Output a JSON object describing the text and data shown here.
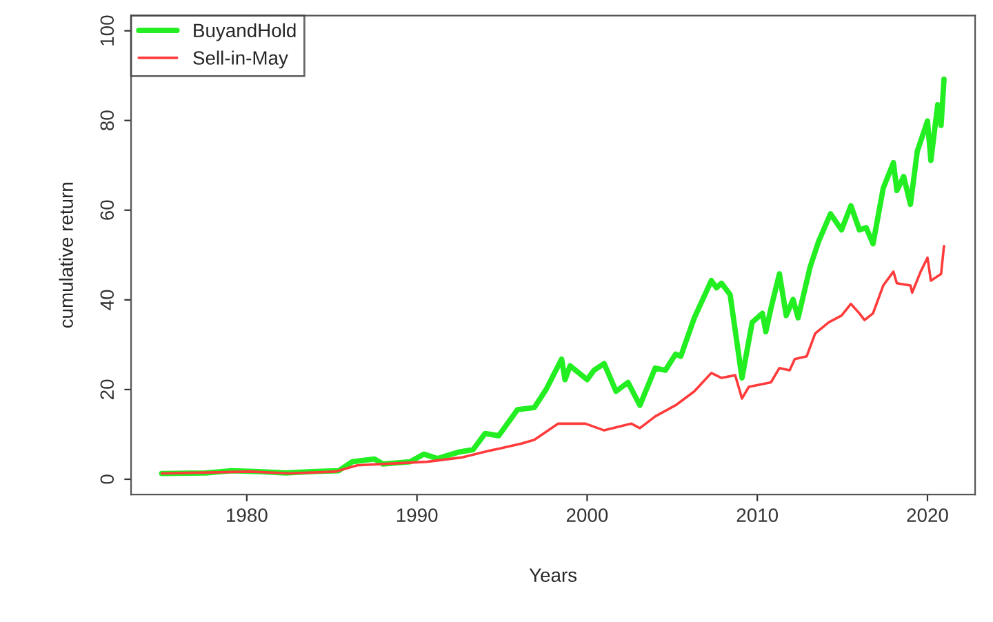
{
  "chart_data": {
    "type": "line",
    "xlabel": "Years",
    "ylabel": "cumulative return",
    "xlim": [
      1973.2,
      2022.8
    ],
    "ylim": [
      -3.4,
      103.4
    ],
    "xticks": [
      1980,
      1990,
      2000,
      2010,
      2020
    ],
    "yticks": [
      0,
      20,
      40,
      60,
      80,
      100
    ],
    "grid": false,
    "legend": "top left",
    "line_style": "solid",
    "marker": "none",
    "series": [
      {
        "name": "BuyandHold",
        "color": "#22ee22",
        "x": [
          1975.0,
          1977.6,
          1979.1,
          1980.7,
          1982.3,
          1983.8,
          1985.4,
          1986.2,
          1987.5,
          1988.0,
          1989.6,
          1990.4,
          1991.2,
          1992.5,
          1993.3,
          1994.0,
          1994.8,
          1995.9,
          1996.9,
          1997.6,
          1998.5,
          1998.7,
          1999.0,
          2000.0,
          2000.4,
          2001.0,
          2001.7,
          2002.4,
          2003.1,
          2004.0,
          2004.6,
          2005.2,
          2005.5,
          2006.3,
          2007.3,
          2007.6,
          2007.9,
          2008.4,
          2009.1,
          2009.7,
          2010.3,
          2010.5,
          2010.8,
          2011.3,
          2011.7,
          2012.1,
          2012.4,
          2013.1,
          2013.6,
          2014.3,
          2014.95,
          2015.5,
          2016.0,
          2016.4,
          2016.8,
          2017.4,
          2018.0,
          2018.2,
          2018.6,
          2019.0,
          2019.4,
          2020.0,
          2020.2,
          2020.6,
          2020.8,
          2020.97
        ],
        "values": [
          1.3,
          1.4,
          1.9,
          1.7,
          1.4,
          1.7,
          1.9,
          3.9,
          4.5,
          3.4,
          3.9,
          5.6,
          4.6,
          6.1,
          6.6,
          10.2,
          9.7,
          15.5,
          16.0,
          20.1,
          26.8,
          22.2,
          25.3,
          22.2,
          24.3,
          25.8,
          19.6,
          21.6,
          16.5,
          24.8,
          24.3,
          27.9,
          27.4,
          36.0,
          44.3,
          42.7,
          43.7,
          41.2,
          22.6,
          35.0,
          37.0,
          32.9,
          38.1,
          45.8,
          36.5,
          40.1,
          36.0,
          47.3,
          53.0,
          59.2,
          55.6,
          61.0,
          55.6,
          56.1,
          52.5,
          64.9,
          70.6,
          64.4,
          67.5,
          61.3,
          73.1,
          79.9,
          71.1,
          83.5,
          78.9,
          89.2
        ]
      },
      {
        "name": "Sell-in-May",
        "color": "#ff3b3b",
        "x": [
          1975.0,
          1980.2,
          1982.5,
          1985.2,
          1986.5,
          1988.0,
          1990.6,
          1992.7,
          1994.3,
          1994.8,
          1996.1,
          1996.9,
          1998.3,
          1999.9,
          2001.0,
          2002.6,
          2003.1,
          2004.0,
          2005.2,
          2006.3,
          2007.3,
          2007.9,
          2008.7,
          2009.1,
          2009.5,
          2010.8,
          2011.3,
          2011.9,
          2012.2,
          2012.9,
          2013.4,
          2014.2,
          2014.95,
          2015.5,
          2016.0,
          2016.3,
          2016.8,
          2017.4,
          2018.0,
          2018.2,
          2019.0,
          2019.1,
          2019.6,
          2020.0,
          2020.2,
          2020.8,
          2020.97
        ],
        "values": [
          1.3,
          1.7,
          1.3,
          1.7,
          3.1,
          3.4,
          3.9,
          4.9,
          6.4,
          6.8,
          7.9,
          8.8,
          12.4,
          12.4,
          10.9,
          12.4,
          11.4,
          14.0,
          16.5,
          19.6,
          23.7,
          22.6,
          23.2,
          18.0,
          20.6,
          21.6,
          24.8,
          24.3,
          26.8,
          27.4,
          32.5,
          35.0,
          36.5,
          39.1,
          37.0,
          35.5,
          37.0,
          43.2,
          46.3,
          43.7,
          43.2,
          41.6,
          46.3,
          49.4,
          44.3,
          45.8,
          52.0
        ]
      }
    ]
  }
}
